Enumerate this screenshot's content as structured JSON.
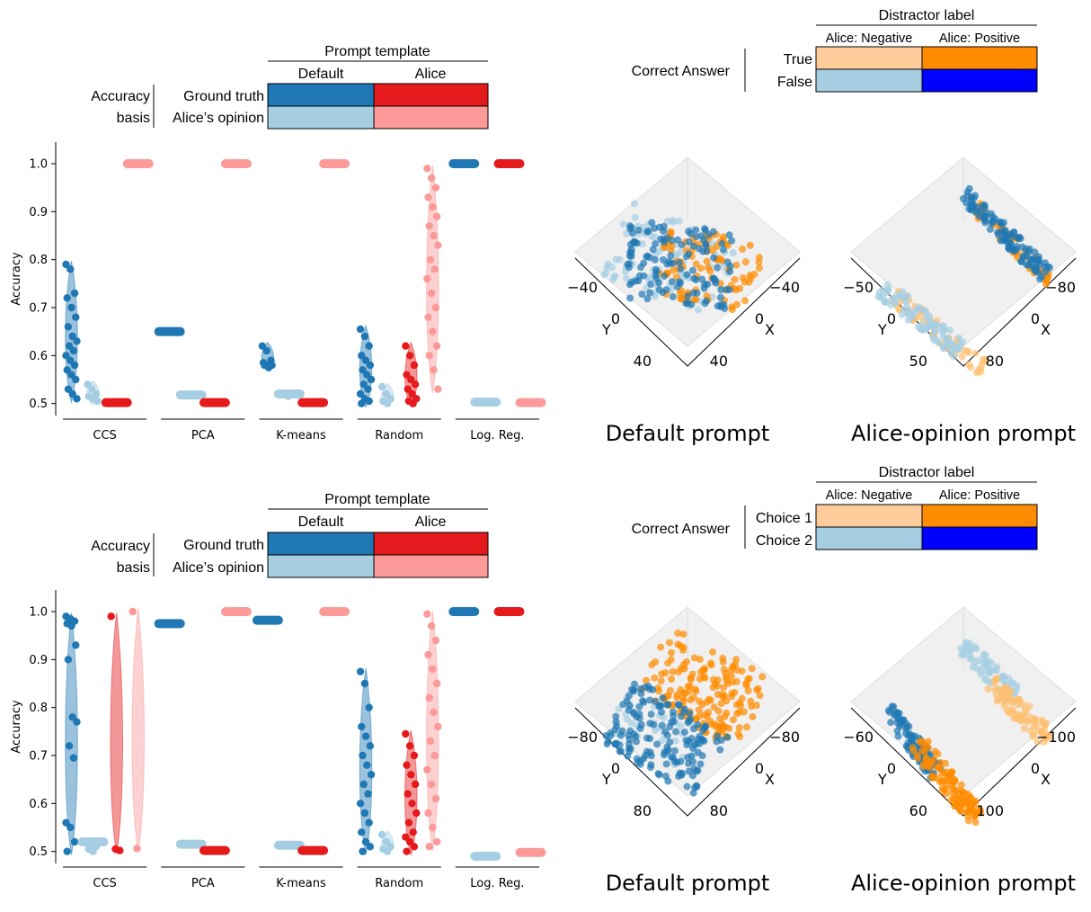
{
  "colors": {
    "gt_default": "#1f77b4",
    "gt_alice": "#e41a1c",
    "op_default": "#a6cee3",
    "op_alice": "#fb9a99",
    "true_neg": "#fdcc9a",
    "true_pos": "#ff8c00",
    "false_neg": "#a6cee3",
    "false_pos": "#0000ff",
    "scatter_blue": "#1f77b4",
    "scatter_light_blue": "#a6cee3",
    "scatter_orange": "#ff8c00",
    "scatter_light_orange": "#fdbf6f"
  },
  "top_legend": {
    "header": "Prompt template",
    "col1": "Default",
    "col2": "Alice",
    "row_group_line1": "Accuracy",
    "row_group_line2": "basis",
    "row1": "Ground truth",
    "row2": "Alice’s opinion"
  },
  "bottom_legend": {
    "header": "Prompt template",
    "col1": "Default",
    "col2": "Alice",
    "row_group_line1": "Accuracy",
    "row_group_line2": "basis",
    "row1": "Ground truth",
    "row2": "Alice’s opinion"
  },
  "top_right_legend": {
    "header": "Distractor label",
    "col1": "Alice: Negative",
    "col2": "Alice: Positive",
    "row_group": "Correct Answer",
    "row1": "True",
    "row2": "False"
  },
  "bottom_right_legend": {
    "header": "Distractor label",
    "col1": "Alice: Negative",
    "col2": "Alice: Positive",
    "row_group": "Correct Answer",
    "row1": "Choice 1",
    "row2": "Choice 2"
  },
  "scatter3d_labels": {
    "top_left": {
      "y_ticks": [
        "−40",
        "0",
        "40"
      ],
      "x_ticks": [
        "−40",
        "0",
        "40"
      ],
      "ylabel": "Y",
      "xlabel": "X",
      "caption": "Default prompt"
    },
    "top_right": {
      "y_ticks": [
        "−50",
        "0",
        "50"
      ],
      "x_ticks": [
        "−80",
        "0",
        "80"
      ],
      "ylabel": "Y",
      "xlabel": "X",
      "caption": "Alice-opinion prompt"
    },
    "bottom_left": {
      "y_ticks": [
        "−80",
        "0",
        "80"
      ],
      "x_ticks": [
        "−80",
        "0",
        "80"
      ],
      "ylabel": "Y",
      "xlabel": "X",
      "caption": "Default prompt"
    },
    "bottom_right": {
      "y_ticks": [
        "−60",
        "0",
        "60"
      ],
      "x_ticks": [
        "−100",
        "0",
        "100"
      ],
      "ylabel": "Y",
      "xlabel": "X",
      "caption": "Alice-opinion prompt"
    }
  },
  "chart_data": [
    {
      "type": "scatter",
      "ylabel": "Accuracy",
      "ylim": [
        0.475,
        1.045
      ],
      "yticks": [
        0.5,
        0.6,
        0.7,
        0.8,
        0.9,
        1.0
      ],
      "categories": [
        "CCS",
        "PCA",
        "K-means",
        "Random",
        "Log. Reg."
      ],
      "series": [
        {
          "key": "gt_default",
          "values": [
            [
              0.79,
              0.78,
              0.73,
              0.72,
              0.7,
              0.68,
              0.66,
              0.64,
              0.63,
              0.62,
              0.61,
              0.6,
              0.59,
              0.58,
              0.57,
              0.56,
              0.55,
              0.53,
              0.52,
              0.51
            ],
            [
              0.65
            ],
            [
              0.62,
              0.61,
              0.59,
              0.585,
              0.58,
              0.58,
              0.58,
              0.575
            ],
            [
              0.655,
              0.64,
              0.62,
              0.6,
              0.59,
              0.58,
              0.57,
              0.56,
              0.55,
              0.54,
              0.53,
              0.52,
              0.51,
              0.505,
              0.5
            ],
            [
              1.0
            ]
          ]
        },
        {
          "key": "op_default",
          "values": [
            [
              0.54,
              0.53,
              0.52,
              0.515,
              0.51,
              0.505
            ],
            [
              0.518
            ],
            [
              0.52,
              0.515
            ],
            [
              0.535,
              0.52,
              0.51,
              0.505,
              0.5
            ],
            [
              0.503
            ]
          ]
        },
        {
          "key": "gt_alice",
          "values": [
            [
              0.502
            ],
            [
              0.502
            ],
            [
              0.502
            ],
            [
              0.62,
              0.6,
              0.58,
              0.56,
              0.55,
              0.54,
              0.53,
              0.52,
              0.51,
              0.505,
              0.5
            ],
            [
              1.0
            ]
          ]
        },
        {
          "key": "op_alice",
          "values": [
            [
              1.0
            ],
            [
              1.0
            ],
            [
              1.0
            ],
            [
              0.99,
              0.97,
              0.95,
              0.93,
              0.91,
              0.89,
              0.87,
              0.85,
              0.83,
              0.8,
              0.78,
              0.76,
              0.73,
              0.7,
              0.68,
              0.65,
              0.62,
              0.6,
              0.57,
              0.53
            ],
            [
              0.502
            ]
          ]
        }
      ]
    },
    {
      "type": "scatter",
      "ylabel": "Accuracy",
      "ylim": [
        0.475,
        1.045
      ],
      "yticks": [
        0.5,
        0.6,
        0.7,
        0.8,
        0.9,
        1.0
      ],
      "categories": [
        "CCS",
        "PCA",
        "K-means",
        "Random",
        "Log. Reg."
      ],
      "series": [
        {
          "key": "gt_default",
          "values": [
            [
              0.99,
              0.985,
              0.98,
              0.975,
              0.97,
              0.93,
              0.9,
              0.78,
              0.77,
              0.72,
              0.695,
              0.56,
              0.55,
              0.52,
              0.5
            ],
            [
              0.975
            ],
            [
              0.982
            ],
            [
              0.875,
              0.85,
              0.8,
              0.76,
              0.74,
              0.72,
              0.7,
              0.68,
              0.66,
              0.64,
              0.62,
              0.6,
              0.58,
              0.56,
              0.54,
              0.52,
              0.51,
              0.5
            ],
            [
              1.0
            ]
          ]
        },
        {
          "key": "op_default",
          "values": [
            [
              0.52,
              0.515,
              0.51,
              0.505,
              0.5
            ],
            [
              0.515
            ],
            [
              0.513
            ],
            [
              0.535,
              0.52,
              0.51,
              0.505,
              0.5
            ],
            [
              0.49
            ]
          ]
        },
        {
          "key": "gt_alice",
          "values": [
            [
              0.99,
              0.505,
              0.502
            ],
            [
              0.502
            ],
            [
              0.502
            ],
            [
              0.745,
              0.72,
              0.7,
              0.68,
              0.66,
              0.64,
              0.62,
              0.6,
              0.58,
              0.56,
              0.54,
              0.53,
              0.52,
              0.51,
              0.5
            ],
            [
              1.0
            ]
          ]
        },
        {
          "key": "op_alice",
          "values": [
            [
              1.0,
              0.506
            ],
            [
              1.0
            ],
            [
              1.0
            ],
            [
              0.995,
              0.97,
              0.94,
              0.91,
              0.88,
              0.85,
              0.82,
              0.79,
              0.76,
              0.73,
              0.7,
              0.67,
              0.64,
              0.61,
              0.58,
              0.55,
              0.52,
              0.51
            ],
            [
              0.498
            ]
          ]
        }
      ]
    }
  ]
}
